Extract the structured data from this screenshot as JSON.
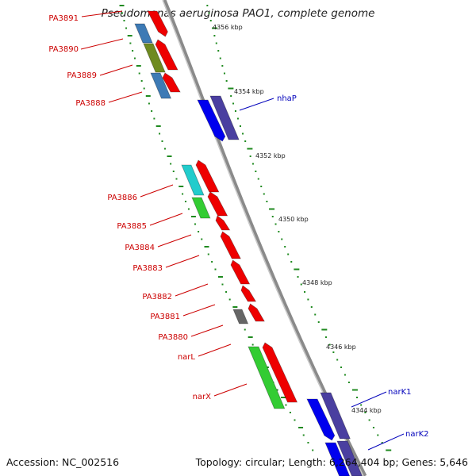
{
  "title": "Pseudomonas aeruginosa PAO1, complete genome",
  "footer": {
    "accession": "Accession: NC_002516",
    "summary": "Topology: circular; Length: 6,264,404 bp; Genes: 5,646"
  },
  "colors": {
    "backbone": "#8a8a8a",
    "tick": "#1f8a1f",
    "label_red": "#cc0000",
    "label_blue": "#0000bb",
    "gene_red": "#ee0000",
    "gene_blue": "#0000ee",
    "gene_navy": "#4a3fa0",
    "gene_steel": "#3d7ab5",
    "gene_olive": "#6e8a20",
    "gene_cyan": "#22cccc",
    "gene_green": "#33cc33",
    "gene_gray": "#666666"
  },
  "scale_labels": [
    "4356 kbp",
    "4354 kbp",
    "4352 kbp",
    "4350 kbp",
    "4348 kbp",
    "4346 kbp",
    "4344 kbp"
  ],
  "gene_labels": {
    "left": [
      "PA3891",
      "PA3890",
      "PA3889",
      "PA3888",
      "PA3886",
      "PA3885",
      "PA3884",
      "PA3883",
      "PA3882",
      "PA3881",
      "PA3880",
      "narL",
      "narX"
    ],
    "right": [
      "nhaP",
      "narK1",
      "narK2"
    ]
  }
}
